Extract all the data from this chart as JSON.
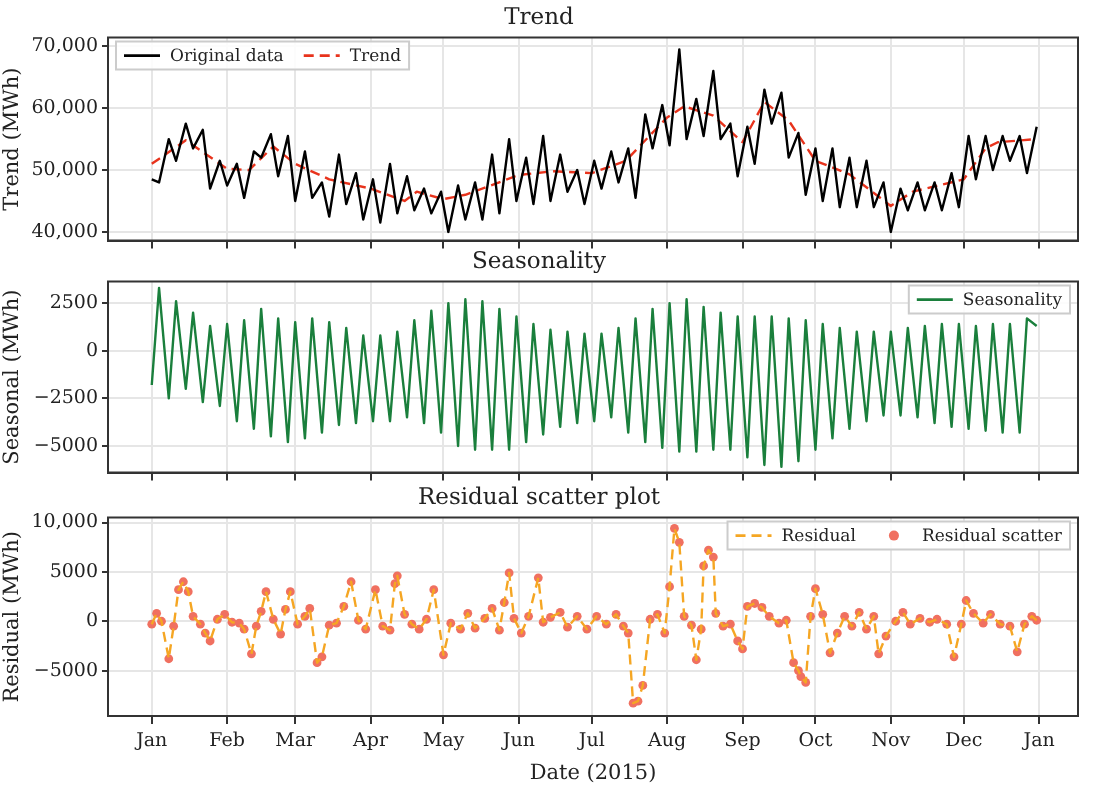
{
  "chart_data": [
    {
      "type": "line",
      "title": "Trend",
      "ylabel": "Trend (MWh)",
      "xlim": [
        "2014-12-14",
        "2016-01-17"
      ],
      "xticks": [
        {
          "value": "2015-01-01",
          "label": null
        },
        {
          "value": "2015-02-01",
          "label": null
        },
        {
          "value": "2015-03-01",
          "label": null
        },
        {
          "value": "2015-04-01",
          "label": null
        },
        {
          "value": "2015-05-01",
          "label": null
        },
        {
          "value": "2015-06-01",
          "label": null
        },
        {
          "value": "2015-07-01",
          "label": null
        },
        {
          "value": "2015-08-01",
          "label": null
        },
        {
          "value": "2015-09-01",
          "label": null
        },
        {
          "value": "2015-10-01",
          "label": null
        },
        {
          "value": "2015-11-01",
          "label": null
        },
        {
          "value": "2015-12-01",
          "label": null
        },
        {
          "value": "2016-01-01",
          "label": null
        }
      ],
      "ylim": [
        38600,
        71400
      ],
      "yticks": [
        {
          "value": 40000,
          "label": "40,000"
        },
        {
          "value": 50000,
          "label": "50,000"
        },
        {
          "value": 60000,
          "label": "60,000"
        },
        {
          "value": 70000,
          "label": "70,000"
        }
      ],
      "grid": true,
      "legend": "top left",
      "tick_labels": "y",
      "x": [
        "2015-01-01",
        "2015-01-04",
        "2015-01-08",
        "2015-01-11",
        "2015-01-15",
        "2015-01-18",
        "2015-01-22",
        "2015-01-25",
        "2015-01-29",
        "2015-02-01",
        "2015-02-05",
        "2015-02-08",
        "2015-02-12",
        "2015-02-15",
        "2015-02-19",
        "2015-02-22",
        "2015-02-26",
        "2015-03-01",
        "2015-03-05",
        "2015-03-08",
        "2015-03-12",
        "2015-03-15",
        "2015-03-19",
        "2015-03-22",
        "2015-03-26",
        "2015-03-29",
        "2015-04-02",
        "2015-04-05",
        "2015-04-09",
        "2015-04-12",
        "2015-04-16",
        "2015-04-19",
        "2015-04-23",
        "2015-04-26",
        "2015-04-30",
        "2015-05-03",
        "2015-05-07",
        "2015-05-10",
        "2015-05-14",
        "2015-05-17",
        "2015-05-21",
        "2015-05-24",
        "2015-05-28",
        "2015-05-31",
        "2015-06-04",
        "2015-06-07",
        "2015-06-11",
        "2015-06-14",
        "2015-06-18",
        "2015-06-21",
        "2015-06-25",
        "2015-06-28",
        "2015-07-02",
        "2015-07-05",
        "2015-07-09",
        "2015-07-12",
        "2015-07-16",
        "2015-07-19",
        "2015-07-23",
        "2015-07-26",
        "2015-07-30",
        "2015-08-02",
        "2015-08-06",
        "2015-08-09",
        "2015-08-13",
        "2015-08-16",
        "2015-08-20",
        "2015-08-23",
        "2015-08-27",
        "2015-08-30",
        "2015-09-03",
        "2015-09-06",
        "2015-09-10",
        "2015-09-13",
        "2015-09-17",
        "2015-09-20",
        "2015-09-24",
        "2015-09-27",
        "2015-10-01",
        "2015-10-04",
        "2015-10-08",
        "2015-10-11",
        "2015-10-15",
        "2015-10-18",
        "2015-10-22",
        "2015-10-25",
        "2015-10-29",
        "2015-11-01",
        "2015-11-05",
        "2015-11-08",
        "2015-11-12",
        "2015-11-15",
        "2015-11-19",
        "2015-11-22",
        "2015-11-26",
        "2015-11-29",
        "2015-12-03",
        "2015-12-06",
        "2015-12-10",
        "2015-12-13",
        "2015-12-17",
        "2015-12-20",
        "2015-12-24",
        "2015-12-27",
        "2015-12-31"
      ],
      "series": [
        {
          "name": "Original data",
          "color": "#000000",
          "marker": "none",
          "line_style": "solid",
          "values": [
            48500,
            48000,
            55000,
            51500,
            57500,
            53500,
            56500,
            47000,
            51500,
            47500,
            51000,
            45500,
            53000,
            52000,
            55800,
            49000,
            55500,
            45000,
            53000,
            45500,
            48000,
            42500,
            52500,
            44500,
            49500,
            42000,
            48500,
            41500,
            51000,
            43000,
            49000,
            43500,
            47000,
            43000,
            46500,
            40000,
            47500,
            42000,
            48000,
            42000,
            52500,
            43000,
            55000,
            45000,
            52000,
            44500,
            55500,
            45000,
            52500,
            46500,
            50000,
            44500,
            51500,
            47000,
            53000,
            48000,
            53500,
            45500,
            59000,
            53500,
            60500,
            54000,
            69500,
            55000,
            61500,
            55500,
            66000,
            55000,
            57500,
            49000,
            57000,
            51000,
            63000,
            57500,
            62500,
            52000,
            56000,
            46000,
            53500,
            45000,
            53500,
            44000,
            52000,
            44000,
            51500,
            44000,
            48000,
            40000,
            47000,
            43500,
            48000,
            43500,
            48000,
            43500,
            49500,
            44000,
            55500,
            48500,
            55500,
            50000,
            55500,
            51500,
            55500,
            49500,
            57000
          ]
        },
        {
          "name": "Trend",
          "color": "#e8331c",
          "marker": "none",
          "line_style": "dashed",
          "x": [
            "2015-01-01",
            "2015-01-15",
            "2015-02-01",
            "2015-02-10",
            "2015-02-20",
            "2015-03-01",
            "2015-03-15",
            "2015-04-01",
            "2015-04-15",
            "2015-04-20",
            "2015-05-01",
            "2015-05-10",
            "2015-06-01",
            "2015-06-15",
            "2015-07-01",
            "2015-07-15",
            "2015-08-01",
            "2015-08-08",
            "2015-08-20",
            "2015-09-01",
            "2015-09-10",
            "2015-09-20",
            "2015-10-01",
            "2015-10-15",
            "2015-11-01",
            "2015-11-10",
            "2015-12-01",
            "2015-12-10",
            "2015-12-15",
            "2015-12-31"
          ],
          "values": [
            51000,
            54800,
            50200,
            50000,
            53800,
            51000,
            48500,
            47000,
            45000,
            46500,
            45300,
            46000,
            49200,
            49800,
            49500,
            51500,
            58500,
            60300,
            58800,
            54500,
            61000,
            58000,
            51500,
            49300,
            44200,
            46500,
            48500,
            53500,
            54500,
            55000
          ]
        }
      ]
    },
    {
      "type": "line",
      "title": "Seasonality",
      "ylabel": "Seasonal (MWh)",
      "xlim": [
        "2014-12-14",
        "2016-01-17"
      ],
      "xticks": [
        {
          "value": "2015-01-01",
          "label": null
        },
        {
          "value": "2015-02-01",
          "label": null
        },
        {
          "value": "2015-03-01",
          "label": null
        },
        {
          "value": "2015-04-01",
          "label": null
        },
        {
          "value": "2015-05-01",
          "label": null
        },
        {
          "value": "2015-06-01",
          "label": null
        },
        {
          "value": "2015-07-01",
          "label": null
        },
        {
          "value": "2015-08-01",
          "label": null
        },
        {
          "value": "2015-09-01",
          "label": null
        },
        {
          "value": "2015-10-01",
          "label": null
        },
        {
          "value": "2015-11-01",
          "label": null
        },
        {
          "value": "2015-12-01",
          "label": null
        },
        {
          "value": "2016-01-01",
          "label": null
        }
      ],
      "ylim": [
        -6400,
        3630
      ],
      "yticks": [
        {
          "value": -5000,
          "label": "−5000"
        },
        {
          "value": -2500,
          "label": "−2500"
        },
        0,
        2500
      ],
      "grid": true,
      "legend": "top right",
      "tick_labels": "y",
      "x": [
        "2015-01-01",
        "2015-01-04",
        "2015-01-08",
        "2015-01-11",
        "2015-01-15",
        "2015-01-18",
        "2015-01-22",
        "2015-01-25",
        "2015-01-29",
        "2015-02-01",
        "2015-02-05",
        "2015-02-08",
        "2015-02-12",
        "2015-02-15",
        "2015-02-19",
        "2015-02-22",
        "2015-02-26",
        "2015-03-01",
        "2015-03-05",
        "2015-03-08",
        "2015-03-12",
        "2015-03-15",
        "2015-03-19",
        "2015-03-22",
        "2015-03-26",
        "2015-03-29",
        "2015-04-02",
        "2015-04-05",
        "2015-04-09",
        "2015-04-12",
        "2015-04-16",
        "2015-04-19",
        "2015-04-23",
        "2015-04-26",
        "2015-04-30",
        "2015-05-03",
        "2015-05-07",
        "2015-05-10",
        "2015-05-14",
        "2015-05-17",
        "2015-05-21",
        "2015-05-24",
        "2015-05-28",
        "2015-05-31",
        "2015-06-04",
        "2015-06-07",
        "2015-06-11",
        "2015-06-14",
        "2015-06-18",
        "2015-06-21",
        "2015-06-25",
        "2015-06-28",
        "2015-07-02",
        "2015-07-05",
        "2015-07-09",
        "2015-07-12",
        "2015-07-16",
        "2015-07-19",
        "2015-07-23",
        "2015-07-26",
        "2015-07-30",
        "2015-08-02",
        "2015-08-06",
        "2015-08-09",
        "2015-08-13",
        "2015-08-16",
        "2015-08-20",
        "2015-08-23",
        "2015-08-27",
        "2015-08-30",
        "2015-09-03",
        "2015-09-06",
        "2015-09-10",
        "2015-09-13",
        "2015-09-17",
        "2015-09-20",
        "2015-09-24",
        "2015-09-27",
        "2015-10-01",
        "2015-10-04",
        "2015-10-08",
        "2015-10-11",
        "2015-10-15",
        "2015-10-18",
        "2015-10-22",
        "2015-10-25",
        "2015-10-29",
        "2015-11-01",
        "2015-11-05",
        "2015-11-08",
        "2015-11-12",
        "2015-11-15",
        "2015-11-19",
        "2015-11-22",
        "2015-11-26",
        "2015-11-29",
        "2015-12-03",
        "2015-12-06",
        "2015-12-10",
        "2015-12-13",
        "2015-12-17",
        "2015-12-20",
        "2015-12-24",
        "2015-12-27",
        "2015-12-31"
      ],
      "series": [
        {
          "name": "Seasonality",
          "color": "#1a7f3c",
          "marker": "none",
          "line_style": "solid",
          "values": [
            -1800,
            3300,
            -2500,
            2600,
            -2000,
            2000,
            -2700,
            1300,
            -2900,
            1400,
            -3700,
            1600,
            -4100,
            2200,
            -4500,
            1700,
            -4800,
            1500,
            -4600,
            1700,
            -4300,
            1500,
            -3900,
            1200,
            -3800,
            800,
            -3700,
            800,
            -3700,
            1000,
            -3500,
            1600,
            -3800,
            2100,
            -4300,
            2500,
            -5000,
            2700,
            -5200,
            2600,
            -5200,
            2200,
            -5200,
            1800,
            -4800,
            1400,
            -4400,
            1100,
            -4000,
            1000,
            -3800,
            900,
            -3700,
            900,
            -3500,
            1200,
            -4300,
            1700,
            -4800,
            2200,
            -5100,
            2500,
            -5300,
            2700,
            -5300,
            2300,
            -5200,
            2000,
            -5200,
            1800,
            -5600,
            1800,
            -6000,
            1800,
            -6100,
            1700,
            -5800,
            1600,
            -5200,
            1400,
            -4600,
            1200,
            -4100,
            1000,
            -3700,
            1000,
            -3400,
            1000,
            -3400,
            1200,
            -3500,
            1300,
            -3800,
            1400,
            -4000,
            1400,
            -4100,
            1300,
            -4200,
            1400,
            -4300,
            1400,
            -4300,
            1700,
            1300
          ]
        }
      ]
    },
    {
      "type": "line",
      "title": "Residual scatter plot",
      "xlabel": "Date (2015)",
      "ylabel": "Residual (MWh)",
      "xlim": [
        "2014-12-14",
        "2016-01-17"
      ],
      "xticks": [
        {
          "value": "2015-01-01",
          "label": "Jan"
        },
        {
          "value": "2015-02-01",
          "label": "Feb"
        },
        {
          "value": "2015-03-01",
          "label": "Mar"
        },
        {
          "value": "2015-04-01",
          "label": "Apr"
        },
        {
          "value": "2015-05-01",
          "label": "May"
        },
        {
          "value": "2015-06-01",
          "label": "Jun"
        },
        {
          "value": "2015-07-01",
          "label": "Jul"
        },
        {
          "value": "2015-08-01",
          "label": "Aug"
        },
        {
          "value": "2015-09-01",
          "label": "Sep"
        },
        {
          "value": "2015-10-01",
          "label": "Oct"
        },
        {
          "value": "2015-11-01",
          "label": "Nov"
        },
        {
          "value": "2015-12-01",
          "label": "Dec"
        },
        {
          "value": "2016-01-01",
          "label": "Jan"
        }
      ],
      "ylim": [
        -9600,
        10500
      ],
      "yticks": [
        {
          "value": -5000,
          "label": "−5000"
        },
        0,
        5000,
        {
          "value": 10000,
          "label": "10,000"
        }
      ],
      "grid": true,
      "legend": "top right",
      "x": [
        "2015-01-01",
        "2015-01-03",
        "2015-01-05",
        "2015-01-08",
        "2015-01-10",
        "2015-01-12",
        "2015-01-14",
        "2015-01-16",
        "2015-01-18",
        "2015-01-21",
        "2015-01-23",
        "2015-01-25",
        "2015-01-28",
        "2015-01-31",
        "2015-02-03",
        "2015-02-06",
        "2015-02-08",
        "2015-02-11",
        "2015-02-13",
        "2015-02-15",
        "2015-02-17",
        "2015-02-20",
        "2015-02-23",
        "2015-02-25",
        "2015-02-27",
        "2015-03-02",
        "2015-03-05",
        "2015-03-07",
        "2015-03-10",
        "2015-03-12",
        "2015-03-15",
        "2015-03-18",
        "2015-03-21",
        "2015-03-24",
        "2015-03-27",
        "2015-03-30",
        "2015-04-03",
        "2015-04-06",
        "2015-04-09",
        "2015-04-11",
        "2015-04-12",
        "2015-04-15",
        "2015-04-18",
        "2015-04-21",
        "2015-04-24",
        "2015-04-27",
        "2015-05-01",
        "2015-05-04",
        "2015-05-08",
        "2015-05-11",
        "2015-05-14",
        "2015-05-18",
        "2015-05-21",
        "2015-05-24",
        "2015-05-26",
        "2015-05-28",
        "2015-05-30",
        "2015-06-02",
        "2015-06-05",
        "2015-06-09",
        "2015-06-11",
        "2015-06-14",
        "2015-06-18",
        "2015-06-21",
        "2015-06-25",
        "2015-06-29",
        "2015-07-03",
        "2015-07-07",
        "2015-07-11",
        "2015-07-14",
        "2015-07-16",
        "2015-07-18",
        "2015-07-20",
        "2015-07-22",
        "2015-07-25",
        "2015-07-28",
        "2015-07-31",
        "2015-08-02",
        "2015-08-04",
        "2015-08-06",
        "2015-08-08",
        "2015-08-11",
        "2015-08-13",
        "2015-08-15",
        "2015-08-16",
        "2015-08-18",
        "2015-08-20",
        "2015-08-21",
        "2015-08-24",
        "2015-08-27",
        "2015-08-30",
        "2015-09-01",
        "2015-09-03",
        "2015-09-06",
        "2015-09-09",
        "2015-09-12",
        "2015-09-16",
        "2015-09-19",
        "2015-09-22",
        "2015-09-24",
        "2015-09-25",
        "2015-09-27",
        "2015-09-29",
        "2015-10-01",
        "2015-10-04",
        "2015-10-07",
        "2015-10-10",
        "2015-10-13",
        "2015-10-16",
        "2015-10-19",
        "2015-10-22",
        "2015-10-25",
        "2015-10-27",
        "2015-10-30",
        "2015-11-03",
        "2015-11-06",
        "2015-11-09",
        "2015-11-13",
        "2015-11-17",
        "2015-11-20",
        "2015-11-24",
        "2015-11-27",
        "2015-11-30",
        "2015-12-02",
        "2015-12-05",
        "2015-12-09",
        "2015-12-12",
        "2015-12-16",
        "2015-12-20",
        "2015-12-23",
        "2015-12-26",
        "2015-12-29",
        "2015-12-31"
      ],
      "series": [
        {
          "name": "Residual",
          "color": "#f5a623",
          "marker": "none",
          "line_style": "dashed",
          "values": [
            -300,
            800,
            0,
            -3800,
            -500,
            3200,
            4000,
            3000,
            500,
            -300,
            -1200,
            -2000,
            200,
            700,
            -100,
            -200,
            -800,
            -3300,
            -500,
            1000,
            3000,
            200,
            -1300,
            1200,
            3000,
            -300,
            500,
            1300,
            -4200,
            -3600,
            -400,
            -200,
            1500,
            4000,
            100,
            -800,
            3200,
            -500,
            -900,
            3800,
            4600,
            700,
            -300,
            -800,
            200,
            3200,
            -3400,
            -200,
            -800,
            800,
            -700,
            300,
            1300,
            -900,
            1900,
            4900,
            300,
            -1200,
            500,
            4400,
            -100,
            400,
            900,
            -600,
            500,
            -800,
            500,
            -300,
            700,
            -500,
            -1200,
            -8300,
            -8100,
            -6500,
            200,
            700,
            -1200,
            3500,
            9400,
            8000,
            500,
            -400,
            -3900,
            -800,
            5600,
            7200,
            6500,
            800,
            -500,
            -300,
            -2000,
            -2800,
            1500,
            1800,
            1400,
            500,
            -200,
            100,
            -4200,
            -5000,
            -5600,
            -6200,
            500,
            3300,
            700,
            -3200,
            -1200,
            500,
            -500,
            900,
            -800,
            500,
            -3300,
            -1500,
            0,
            900,
            -300,
            300,
            -100,
            200,
            -300,
            -3600,
            -300,
            2100,
            800,
            -200,
            700,
            -300,
            -500,
            -3100,
            -300,
            500,
            100
          ]
        },
        {
          "name": "Residual scatter",
          "color": "#f07060",
          "type": "scatter",
          "marker": "circle",
          "values": [
            -300,
            800,
            0,
            -3800,
            -500,
            3200,
            4000,
            3000,
            500,
            -300,
            -1200,
            -2000,
            200,
            700,
            -100,
            -200,
            -800,
            -3300,
            -500,
            1000,
            3000,
            200,
            -1300,
            1200,
            3000,
            -300,
            500,
            1300,
            -4200,
            -3600,
            -400,
            -200,
            1500,
            4000,
            100,
            -800,
            3200,
            -500,
            -900,
            3800,
            4600,
            700,
            -300,
            -800,
            200,
            3200,
            -3400,
            -200,
            -800,
            800,
            -700,
            300,
            1300,
            -900,
            1900,
            4900,
            300,
            -1200,
            500,
            4400,
            -100,
            400,
            900,
            -600,
            500,
            -800,
            500,
            -300,
            700,
            -500,
            -1200,
            -8300,
            -8100,
            -6500,
            200,
            700,
            -1200,
            3500,
            9400,
            8000,
            500,
            -400,
            -3900,
            -800,
            5600,
            7200,
            6500,
            800,
            -500,
            -300,
            -2000,
            -2800,
            1500,
            1800,
            1400,
            500,
            -200,
            100,
            -4200,
            -5000,
            -5600,
            -6200,
            500,
            3300,
            700,
            -3200,
            -1200,
            500,
            -500,
            900,
            -800,
            500,
            -3300,
            -1500,
            0,
            900,
            -300,
            300,
            -100,
            200,
            -300,
            -3600,
            -300,
            2100,
            800,
            -200,
            700,
            -300,
            -500,
            -3100,
            -300,
            500,
            100
          ]
        }
      ]
    }
  ]
}
